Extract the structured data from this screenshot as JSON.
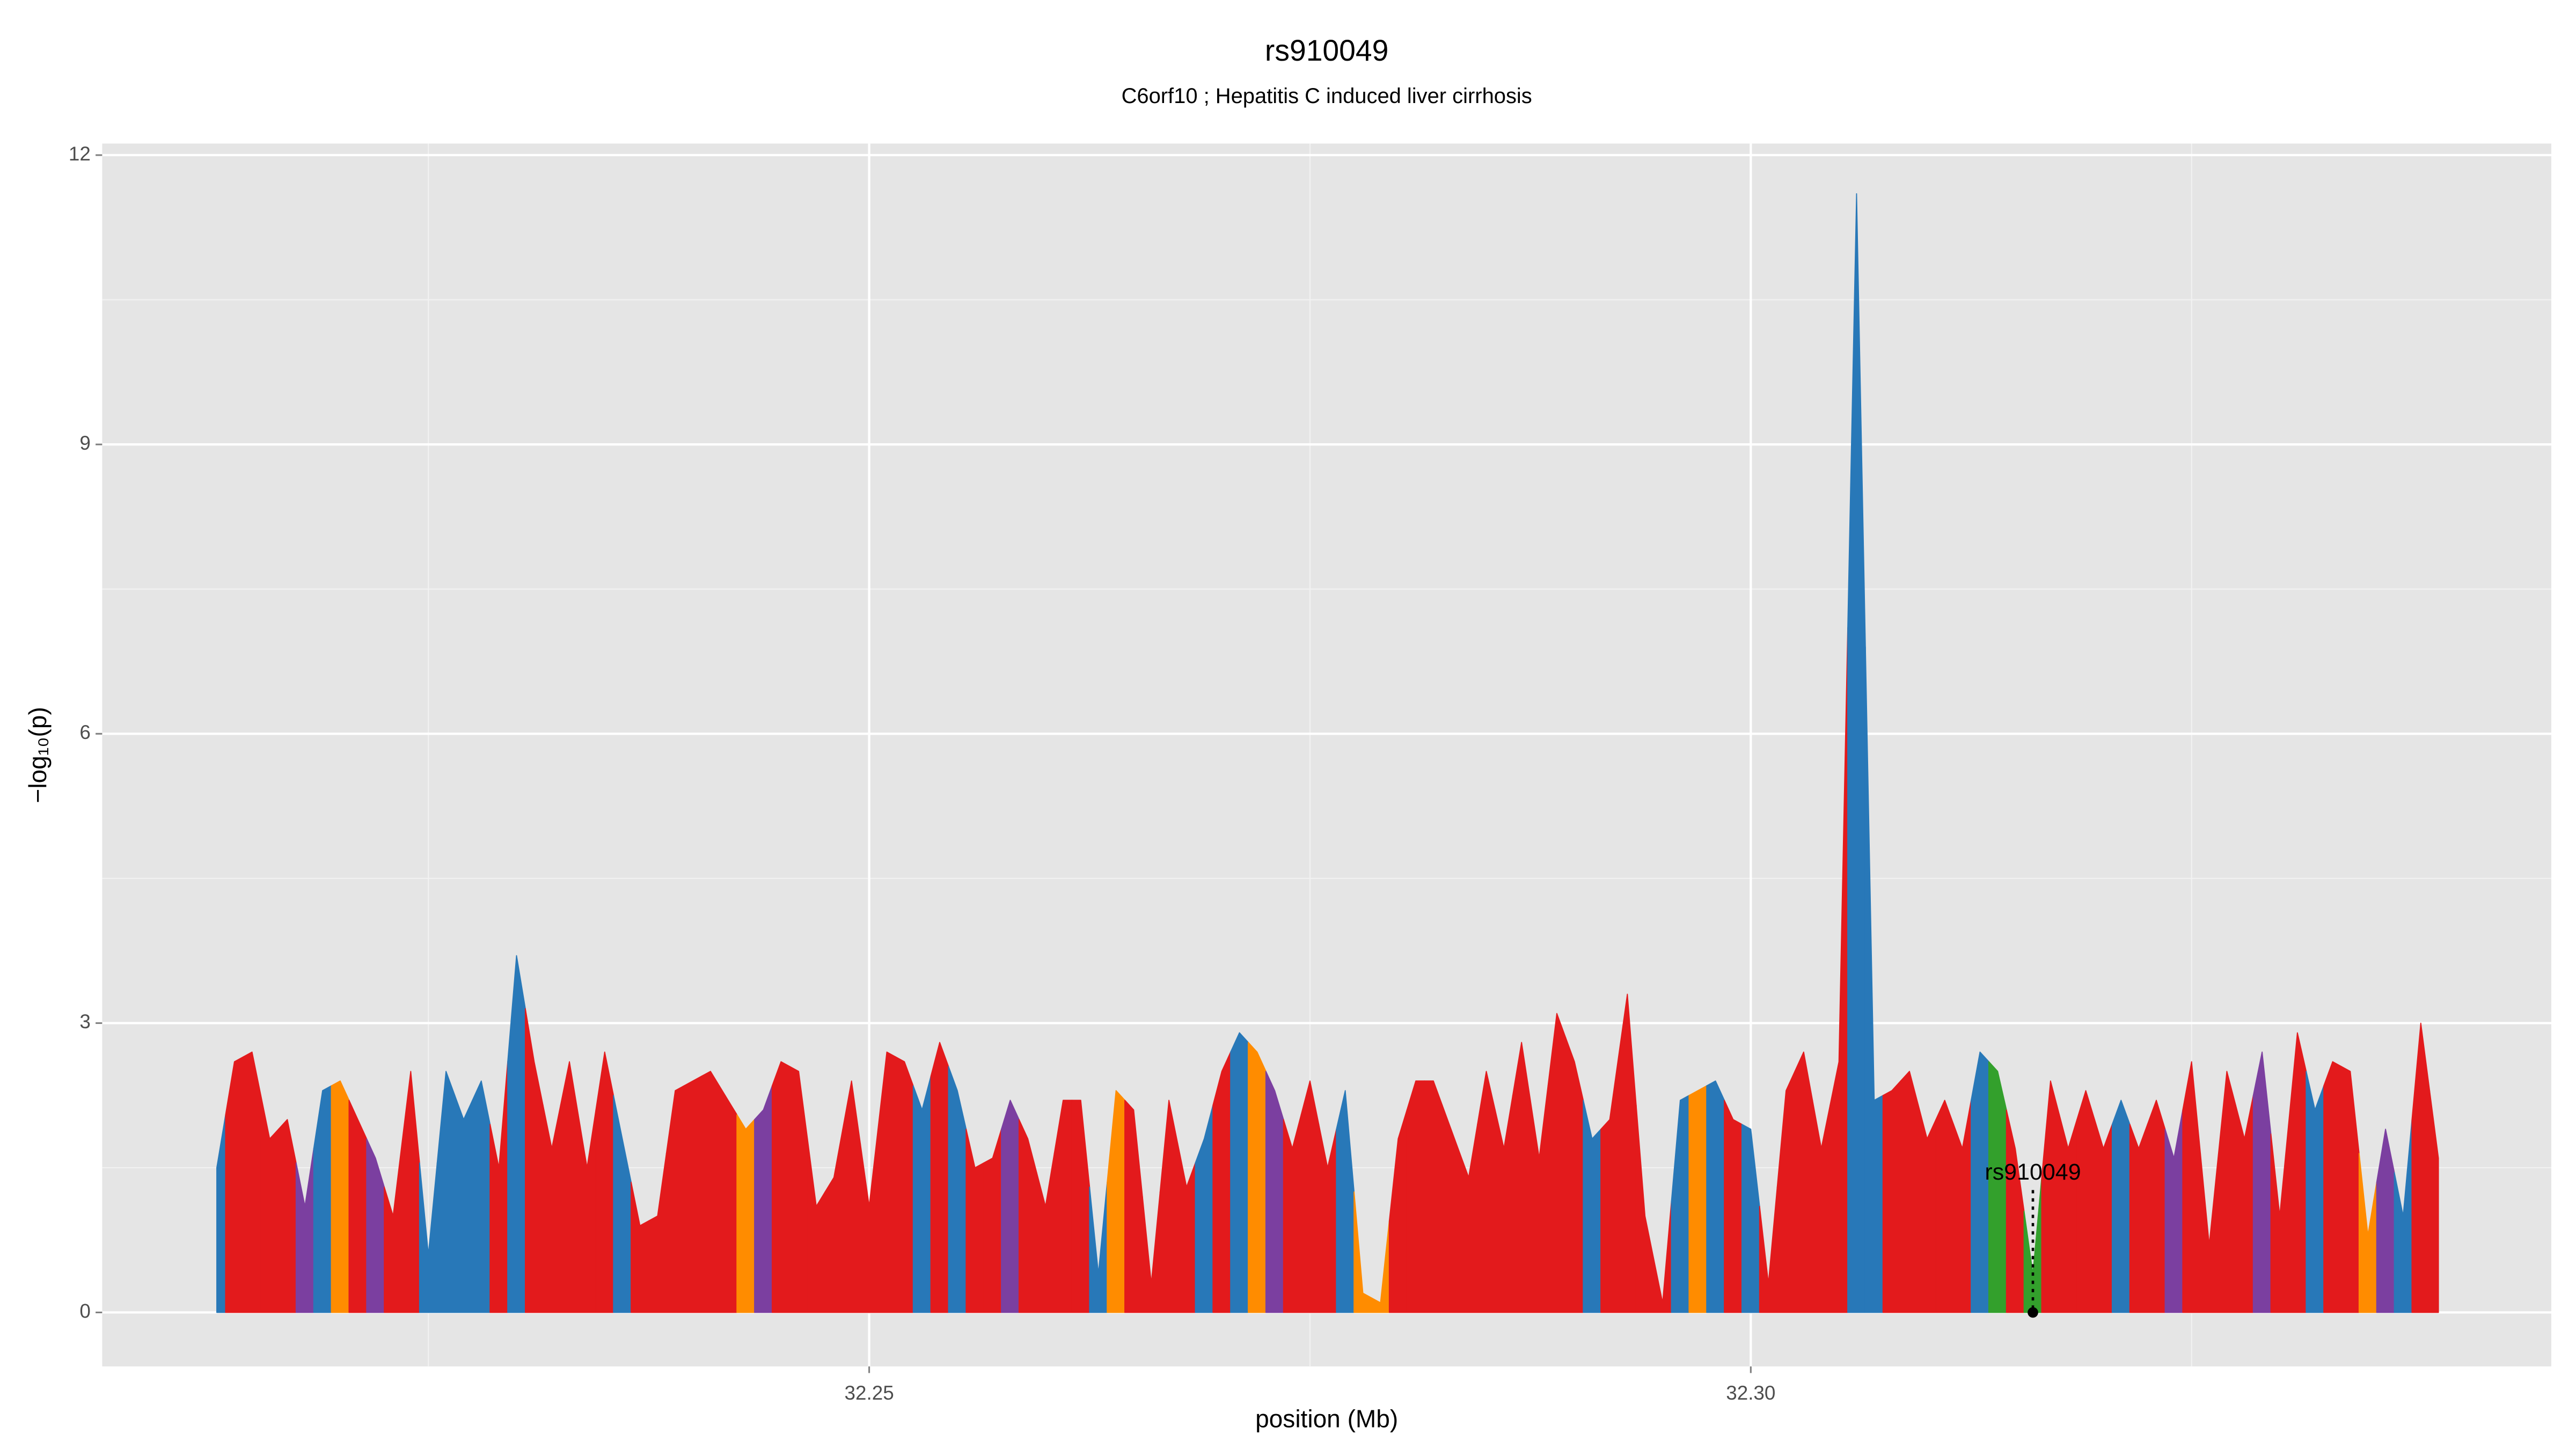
{
  "chart_data": {
    "type": "area",
    "title": "rs910049",
    "subtitle": "C6orf10 ; Hepatitis C induced liver cirrhosis",
    "x_label": "position (Mb)",
    "y_label": "−log₁₀(p)",
    "xlim": [
      32.2065,
      32.3454
    ],
    "ylim": [
      -0.56,
      12.12
    ],
    "xticks": [
      32.25,
      {
        "value": 32.3,
        "label": "32.30"
      }
    ],
    "yticks": [
      0,
      3,
      6,
      9,
      12
    ],
    "x_minor_grid": [
      32.225,
      32.275,
      32.325
    ],
    "y_minor_grid": [
      1.5,
      4.5,
      7.5,
      10.5
    ],
    "grid": true,
    "x": [
      32.213,
      32.214,
      32.215,
      32.216,
      32.217,
      32.218,
      32.219,
      32.22,
      32.221,
      32.222,
      32.223,
      32.224,
      32.225,
      32.226,
      32.227,
      32.228,
      32.229,
      32.23,
      32.231,
      32.232,
      32.233,
      32.234,
      32.235,
      32.236,
      32.237,
      32.238,
      32.239,
      32.24,
      32.241,
      32.242,
      32.243,
      32.244,
      32.245,
      32.246,
      32.247,
      32.248,
      32.249,
      32.25,
      32.251,
      32.252,
      32.253,
      32.254,
      32.255,
      32.256,
      32.257,
      32.258,
      32.259,
      32.26,
      32.261,
      32.262,
      32.263,
      32.264,
      32.265,
      32.266,
      32.267,
      32.268,
      32.269,
      32.27,
      32.271,
      32.272,
      32.273,
      32.274,
      32.275,
      32.276,
      32.277,
      32.278,
      32.279,
      32.28,
      32.281,
      32.282,
      32.283,
      32.284,
      32.285,
      32.286,
      32.287,
      32.288,
      32.289,
      32.29,
      32.291,
      32.292,
      32.293,
      32.294,
      32.295,
      32.296,
      32.297,
      32.298,
      32.299,
      32.3,
      32.301,
      32.302,
      32.303,
      32.304,
      32.305,
      32.306,
      32.307,
      32.308,
      32.309,
      32.31,
      32.311,
      32.312,
      32.313,
      32.314,
      32.315,
      32.316,
      32.317,
      32.318,
      32.319,
      32.32,
      32.321,
      32.322,
      32.323,
      32.324,
      32.325,
      32.326,
      32.327,
      32.328,
      32.329,
      32.33,
      32.331,
      32.332,
      32.333,
      32.334,
      32.335,
      32.336,
      32.337,
      32.338,
      32.339
    ],
    "values": [
      1.5,
      2.6,
      2.7,
      1.8,
      2.0,
      1.1,
      2.3,
      2.4,
      2.0,
      1.6,
      1.0,
      2.5,
      0.6,
      2.5,
      2.0,
      2.4,
      1.5,
      3.7,
      2.6,
      1.7,
      2.6,
      1.5,
      2.7,
      1.8,
      0.9,
      1.0,
      2.3,
      2.4,
      2.5,
      2.2,
      1.9,
      2.1,
      2.6,
      2.5,
      1.1,
      1.4,
      2.4,
      1.1,
      2.7,
      2.6,
      2.1,
      2.8,
      2.3,
      1.5,
      1.6,
      2.2,
      1.8,
      1.1,
      2.2,
      2.2,
      0.4,
      2.3,
      2.1,
      0.3,
      2.2,
      1.3,
      1.8,
      2.5,
      2.9,
      2.7,
      2.3,
      1.7,
      2.4,
      1.5,
      2.3,
      0.2,
      0.1,
      1.8,
      2.4,
      2.4,
      1.9,
      1.4,
      2.5,
      1.7,
      2.8,
      1.6,
      3.1,
      2.6,
      1.8,
      2.0,
      3.3,
      1.0,
      0.1,
      2.2,
      2.3,
      2.4,
      2.0,
      1.9,
      0.3,
      2.3,
      2.7,
      1.7,
      2.6,
      11.6,
      2.2,
      2.3,
      2.5,
      1.8,
      2.2,
      1.7,
      2.7,
      2.5,
      1.7,
      0.4,
      2.4,
      1.7,
      2.3,
      1.7,
      2.2,
      1.7,
      2.2,
      1.6,
      2.6,
      0.7,
      2.5,
      1.8,
      2.7,
      1.0,
      2.9,
      2.1,
      2.6,
      2.5,
      0.8,
      1.9,
      1.0,
      3.0,
      1.6
    ],
    "point_colors": [
      "#2878b8",
      "#e31a1c",
      "#e31a1c",
      "#e31a1c",
      "#e31a1c",
      "#7b3fa0",
      "#2878b8",
      "#ff8c00",
      "#e31a1c",
      "#7b3fa0",
      "#e31a1c",
      "#e31a1c",
      "#2878b8",
      "#2878b8",
      "#2878b8",
      "#2878b8",
      "#e31a1c",
      "#2878b8",
      "#e31a1c",
      "#e31a1c",
      "#e31a1c",
      "#e31a1c",
      "#e31a1c",
      "#2878b8",
      "#e31a1c",
      "#e31a1c",
      "#e31a1c",
      "#e31a1c",
      "#e31a1c",
      "#e31a1c",
      "#ff8c00",
      "#7b3fa0",
      "#e31a1c",
      "#e31a1c",
      "#e31a1c",
      "#e31a1c",
      "#e31a1c",
      "#e31a1c",
      "#e31a1c",
      "#e31a1c",
      "#2878b8",
      "#e31a1c",
      "#2878b8",
      "#e31a1c",
      "#e31a1c",
      "#7b3fa0",
      "#e31a1c",
      "#e31a1c",
      "#e31a1c",
      "#e31a1c",
      "#2878b8",
      "#ff8c00",
      "#e31a1c",
      "#e31a1c",
      "#e31a1c",
      "#e31a1c",
      "#2878b8",
      "#e31a1c",
      "#2878b8",
      "#ff8c00",
      "#7b3fa0",
      "#e31a1c",
      "#e31a1c",
      "#e31a1c",
      "#2878b8",
      "#ff8c00",
      "#ff8c00",
      "#e31a1c",
      "#e31a1c",
      "#e31a1c",
      "#e31a1c",
      "#e31a1c",
      "#e31a1c",
      "#e31a1c",
      "#e31a1c",
      "#e31a1c",
      "#e31a1c",
      "#e31a1c",
      "#2878b8",
      "#e31a1c",
      "#e31a1c",
      "#e31a1c",
      "#e31a1c",
      "#2878b8",
      "#ff8c00",
      "#2878b8",
      "#e31a1c",
      "#2878b8",
      "#e31a1c",
      "#e31a1c",
      "#e31a1c",
      "#e31a1c",
      "#e31a1c",
      "#2878b8",
      "#2878b8",
      "#e31a1c",
      "#e31a1c",
      "#e31a1c",
      "#e31a1c",
      "#e31a1c",
      "#2878b8",
      "#33a02c",
      "#e31a1c",
      "#33a02c",
      "#e31a1c",
      "#e31a1c",
      "#e31a1c",
      "#e31a1c",
      "#2878b8",
      "#e31a1c",
      "#e31a1c",
      "#7b3fa0",
      "#e31a1c",
      "#e31a1c",
      "#e31a1c",
      "#e31a1c",
      "#7b3fa0",
      "#e31a1c",
      "#e31a1c",
      "#2878b8",
      "#e31a1c",
      "#e31a1c",
      "#ff8c00",
      "#7b3fa0",
      "#2878b8",
      "#e31a1c",
      "#e31a1c"
    ],
    "annotation": {
      "text": "rs910049",
      "x": 32.316,
      "y": 1.44
    },
    "marker": {
      "x": 32.316,
      "y": 0
    }
  }
}
